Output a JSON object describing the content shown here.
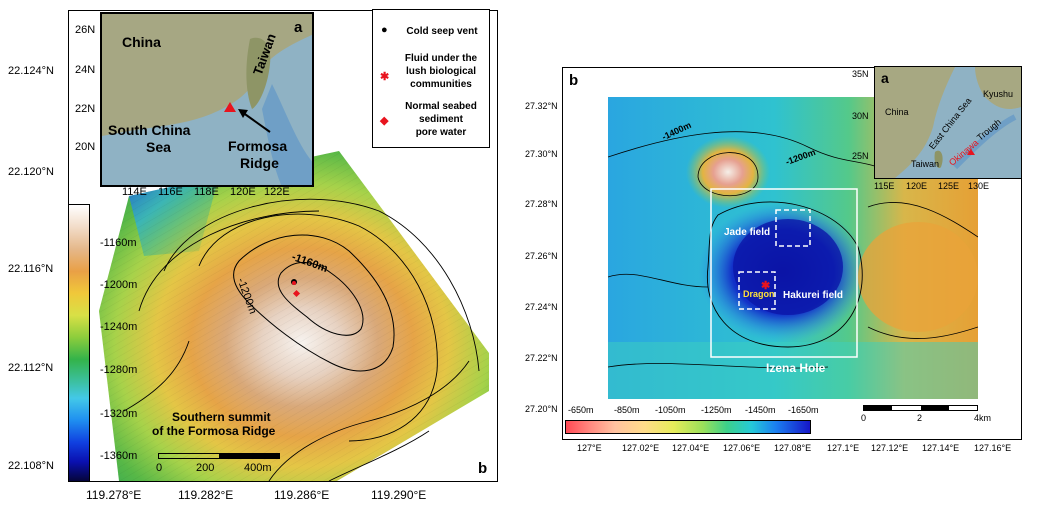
{
  "left_panel": {
    "y_ticks": [
      "22.124°N",
      "22.120°N",
      "22.116°N",
      "22.112°N",
      "22.108°N"
    ],
    "x_ticks": [
      "119.278°E",
      "119.282°E",
      "119.286°E",
      "119.290°E"
    ],
    "panel_label": "b",
    "colorbar_ticks": [
      "-1160m",
      "-1200m",
      "-1240m",
      "-1280m",
      "-1320m",
      "-1360m"
    ],
    "contour_labels": [
      "-1160m",
      "-1200m"
    ],
    "summit_title_line1": "Southern summit",
    "summit_title_line2": "of the Formosa Ridge",
    "scalebar_labels": [
      "0",
      "200",
      "400m"
    ],
    "inset": {
      "label": "a",
      "y_ticks": [
        "26N",
        "24N",
        "22N",
        "20N"
      ],
      "x_ticks": [
        "114E",
        "116E",
        "118E",
        "120E",
        "122E"
      ],
      "place_china": "China",
      "place_taiwan": "Taiwan",
      "place_scs_line1": "South China",
      "place_scs_line2": "Sea",
      "place_formosa_line1": "Formosa",
      "place_formosa_line2": "Ridge"
    },
    "legend": {
      "item1": "Cold seep vent",
      "item2_line1": "Fluid under the",
      "item2_line2": "lush biological",
      "item2_line3": "communities",
      "item3_line1": "Normal seabed",
      "item3_line2": "sediment",
      "item3_line3": "pore water",
      "sym1": "●",
      "sym2": "✱",
      "sym3": "◆"
    }
  },
  "right_panel": {
    "panel_label": "b",
    "y_ticks": [
      "27.32°N",
      "27.30°N",
      "27.28°N",
      "27.26°N",
      "27.24°N",
      "27.22°N",
      "27.20°N"
    ],
    "x_ticks": [
      "127°E",
      "127.02°E",
      "127.04°E",
      "127.06°E",
      "127.08°E",
      "127.1°E",
      "127.12°E",
      "127.14°E",
      "127.16°E"
    ],
    "colorbar_ticks": [
      "-650m",
      "-850m",
      "-1050m",
      "-1250m",
      "-1450m",
      "-1650m"
    ],
    "contour_labels": [
      "-1400m",
      "-1200m"
    ],
    "field_jade": "Jade field",
    "field_hakurei": "Hakurei field",
    "field_dragon": "Dragon",
    "izena": "Izena Hole",
    "scalebar_labels": [
      "0",
      "2",
      "4km"
    ],
    "inset": {
      "label": "a",
      "y_ticks": [
        "35N",
        "30N",
        "25N"
      ],
      "x_ticks": [
        "115E",
        "120E",
        "125E",
        "130E"
      ],
      "place_china": "China",
      "place_kyushu": "Kyushu",
      "place_ecs": "East China Sea",
      "place_okinawa": "Okinawa",
      "place_trough": "Trough",
      "place_taiwan": "Taiwan"
    }
  },
  "colors": {
    "marker_red": "#e8141e",
    "dragon_yellow": "#ffe23a"
  }
}
